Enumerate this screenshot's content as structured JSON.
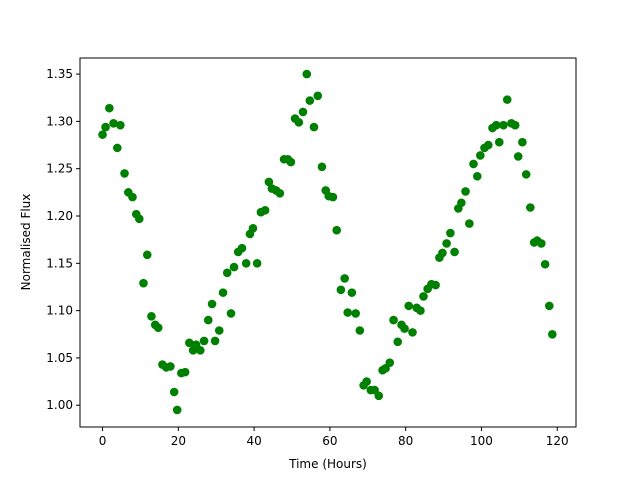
{
  "chart_data": {
    "type": "scatter",
    "xlabel": "Time (Hours)",
    "ylabel": "Normalised Flux",
    "color": "#008000",
    "x": [
      0,
      0.8,
      1.8,
      2.9,
      3.9,
      4.7,
      5.8,
      6.8,
      7.9,
      8.9,
      9.7,
      10.8,
      11.8,
      12.9,
      13.9,
      14.7,
      15.8,
      16.8,
      17.9,
      18.9,
      19.7,
      20.8,
      21.8,
      22.9,
      23.9,
      24.7,
      25.8,
      26.8,
      27.9,
      28.9,
      29.7,
      30.8,
      31.8,
      32.9,
      33.9,
      34.7,
      35.8,
      36.8,
      37.9,
      38.9,
      39.7,
      40.8,
      41.8,
      42.9,
      43.9,
      44.7,
      45.8,
      46.8,
      47.9,
      48.9,
      49.7,
      50.8,
      51.8,
      52.9,
      53.9,
      54.7,
      55.8,
      56.8,
      57.9,
      58.9,
      59.7,
      60.8,
      61.8,
      62.9,
      63.9,
      64.7,
      65.8,
      66.8,
      67.9,
      68.9,
      69.7,
      70.8,
      71.8,
      72.9,
      73.9,
      74.7,
      75.8,
      76.8,
      77.9,
      78.9,
      79.7,
      80.8,
      81.8,
      82.9,
      83.9,
      84.7,
      85.8,
      86.8,
      87.9,
      88.9,
      89.7,
      90.8,
      91.8,
      92.9,
      93.9,
      94.7,
      95.8,
      96.8,
      97.9,
      98.9,
      99.7,
      100.8,
      101.8,
      102.9,
      103.9,
      104.7,
      105.8,
      106.8,
      107.9,
      108.9,
      109.7,
      110.8,
      111.8,
      112.9,
      113.9,
      114.7,
      115.8,
      116.8,
      117.9,
      118.7
    ],
    "values": [
      1.286,
      1.294,
      1.314,
      1.298,
      1.272,
      1.296,
      1.245,
      1.225,
      1.22,
      1.202,
      1.197,
      1.129,
      1.159,
      1.094,
      1.085,
      1.082,
      1.043,
      1.04,
      1.041,
      1.014,
      0.995,
      1.034,
      1.035,
      1.066,
      1.058,
      1.064,
      1.058,
      1.068,
      1.09,
      1.107,
      1.068,
      1.079,
      1.119,
      1.14,
      1.097,
      1.146,
      1.162,
      1.166,
      1.15,
      1.181,
      1.187,
      1.15,
      1.204,
      1.206,
      1.236,
      1.229,
      1.227,
      1.224,
      1.26,
      1.26,
      1.257,
      1.303,
      1.299,
      1.31,
      1.35,
      1.322,
      1.294,
      1.327,
      1.252,
      1.227,
      1.221,
      1.22,
      1.185,
      1.122,
      1.134,
      1.098,
      1.119,
      1.097,
      1.079,
      1.021,
      1.025,
      1.016,
      1.016,
      1.01,
      1.037,
      1.039,
      1.045,
      1.09,
      1.067,
      1.085,
      1.081,
      1.105,
      1.077,
      1.103,
      1.1,
      1.115,
      1.123,
      1.128,
      1.127,
      1.156,
      1.161,
      1.171,
      1.182,
      1.162,
      1.208,
      1.214,
      1.226,
      1.192,
      1.255,
      1.242,
      1.264,
      1.272,
      1.275,
      1.293,
      1.296,
      1.278,
      1.296,
      1.323,
      1.298,
      1.296,
      1.263,
      1.278,
      1.244,
      1.209,
      1.172,
      1.174,
      1.171,
      1.149,
      1.105,
      1.075
    ],
    "xlim": [
      -5.95,
      124.95
    ],
    "ylim": [
      0.977,
      1.367
    ],
    "xticks": [
      0,
      20,
      40,
      60,
      80,
      100,
      120
    ],
    "yticks": [
      {
        "value": 1.0,
        "label": "1.00"
      },
      {
        "value": 1.05,
        "label": "1.05"
      },
      {
        "value": 1.1,
        "label": "1.10"
      },
      {
        "value": 1.15,
        "label": "1.15"
      },
      {
        "value": 1.2,
        "label": "1.20"
      },
      {
        "value": 1.25,
        "label": "1.25"
      },
      {
        "value": 1.3,
        "label": "1.30"
      },
      {
        "value": 1.35,
        "label": "1.35"
      }
    ]
  }
}
